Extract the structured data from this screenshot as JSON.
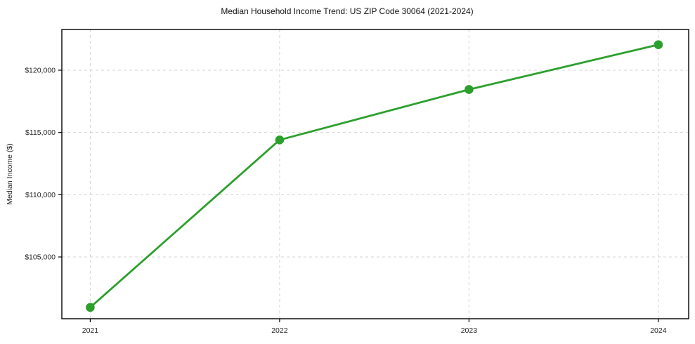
{
  "chart_data": {
    "type": "line",
    "title": "Median Household Income Trend: US ZIP Code 30064 (2021-2024)",
    "ylabel": "Median Income ($)",
    "xlabel": "",
    "x": [
      2021,
      2022,
      2023,
      2024
    ],
    "xtick_labels": [
      "2021",
      "2022",
      "2023",
      "2024"
    ],
    "yticks": [
      105000,
      110000,
      115000,
      120000
    ],
    "ytick_labels": [
      "$105,000",
      "$110,000",
      "$115,000",
      "$120,000"
    ],
    "series": [
      {
        "name": "Median Income",
        "values": [
          100950,
          114400,
          118450,
          122050
        ]
      }
    ],
    "xlim": [
      2020.85,
      2024.16
    ],
    "ylim": [
      100040,
      123270
    ],
    "grid": true,
    "grid_style": "dashed",
    "legend": "none",
    "colors": {
      "line": "#2ca02c",
      "marker": "#2ca02c",
      "grid": "#d4d4d4",
      "spine": "#000000",
      "text": "#1a1a1a",
      "background": "#ffffff"
    }
  }
}
